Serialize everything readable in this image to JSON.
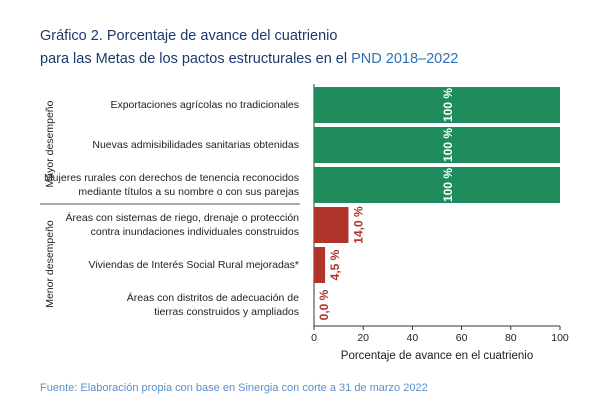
{
  "title": {
    "line1": "Gráfico 2. Porcentaje de avance del cuatrienio",
    "line2_prefix": "para las Metas de los pactos estructurales en el",
    "line2_highlight": "PND 2018–2022"
  },
  "source": "Fuente: Elaboración propia con base en Sinergia con corte a 31 de marzo 2022",
  "colors": {
    "title": "#1b3a6b",
    "highlight": "#2f6fb5",
    "high_bar": "#1f8c5e",
    "low_bar": "#b0342a",
    "source": "#5b8fc9"
  },
  "chart_data": {
    "type": "bar",
    "orientation": "horizontal",
    "xlabel": "Porcentaje de avance en el cuatrienio",
    "xlim": [
      0,
      100
    ],
    "xticks": [
      "0",
      "20",
      "40",
      "60",
      "80",
      "100"
    ],
    "groups": [
      {
        "label": "Mayor desempeño",
        "category_range": [
          0,
          2
        ]
      },
      {
        "label": "Menor desempeño",
        "category_range": [
          3,
          5
        ]
      }
    ],
    "categories": [
      [
        "Exportaciones agrícolas no tradicionales"
      ],
      [
        "Nuevas admisibilidades sanitarias obtenidas"
      ],
      [
        "Mujeres rurales con derechos de tenencia reconocidos",
        "mediante títulos a su nombre o con sus parejas"
      ],
      [
        "Áreas con sistemas de riego, drenaje o protección",
        "contra inundaciones individuales construidos"
      ],
      [
        "Viviendas de Interés Social Rural mejoradas*"
      ],
      [
        "Áreas con distritos de adecuación de",
        "tierras construidos y ampliados"
      ]
    ],
    "values": [
      100,
      100,
      100,
      14.0,
      4.5,
      0.0
    ],
    "value_labels": [
      "100 %",
      "100 %",
      "100 %",
      "14,0 %",
      "4,5 %",
      "0,0 %"
    ],
    "performance": [
      "high",
      "high",
      "high",
      "low",
      "low",
      "low"
    ]
  }
}
